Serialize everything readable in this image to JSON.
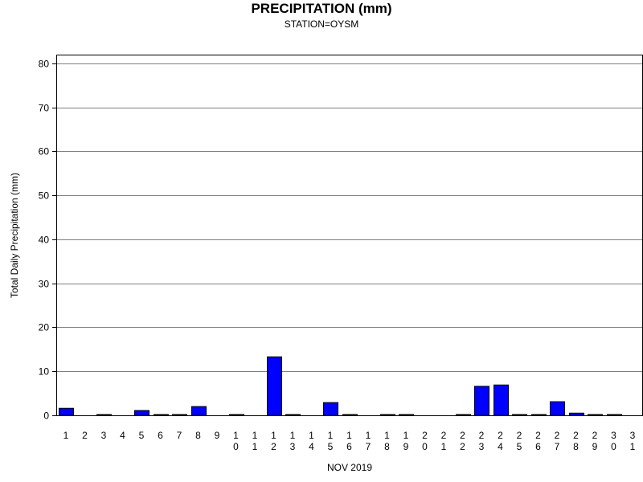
{
  "chart_data": {
    "type": "bar",
    "title": "PRECIPITATION (mm)",
    "subtitle": "STATION=OYSM",
    "xlabel": "NOV 2019",
    "ylabel": "Total Daily Precipitation (mm)",
    "ylim": [
      0,
      82
    ],
    "yticks": [
      0,
      10,
      20,
      30,
      40,
      50,
      60,
      70,
      80
    ],
    "grid": true,
    "categories": [
      "1",
      "2",
      "3",
      "4",
      "5",
      "6",
      "7",
      "8",
      "9",
      "10",
      "11",
      "12",
      "13",
      "14",
      "15",
      "16",
      "17",
      "18",
      "19",
      "20",
      "21",
      "22",
      "23",
      "24",
      "25",
      "26",
      "27",
      "28",
      "29",
      "30",
      "31"
    ],
    "values": [
      1.6,
      null,
      0.1,
      null,
      1.1,
      0.1,
      0.1,
      2.0,
      null,
      0.1,
      null,
      13.3,
      0.1,
      null,
      2.9,
      0.1,
      null,
      0.1,
      0.1,
      null,
      null,
      0.1,
      6.6,
      6.9,
      0.1,
      0.1,
      3.1,
      0.5,
      0.1,
      0.1,
      null
    ],
    "bar_color": "#0000ff"
  }
}
